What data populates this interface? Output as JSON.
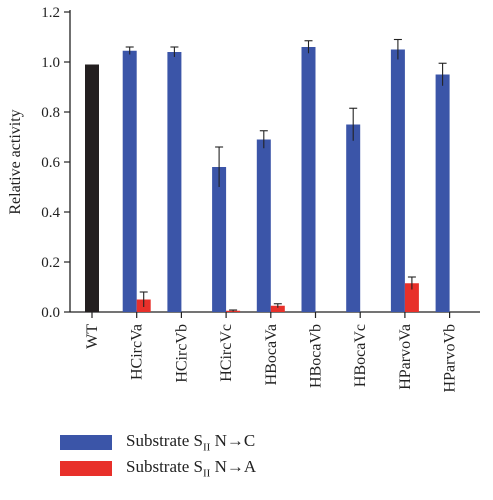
{
  "chart_data": {
    "type": "bar",
    "ylabel": "Relative activity",
    "ylim": [
      0,
      1.2
    ],
    "yticks": [
      "0.0",
      "0.2",
      "0.4",
      "0.6",
      "0.8",
      "1.0",
      "1.2"
    ],
    "categories": [
      "WT",
      "HCircVa",
      "HCircVb",
      "HCircVc",
      "HBocaVa",
      "HBocaVb",
      "HBocaVc",
      "HParvoVa",
      "HParvoVb"
    ],
    "wt_value": 0.99,
    "wt_color": "#231f20",
    "series": [
      {
        "name_prefix": "Substrate S",
        "name_sub": "II",
        "name_suffix": " N→C",
        "color": "#3b55a8",
        "values": [
          null,
          1.045,
          1.04,
          0.58,
          0.69,
          1.06,
          0.75,
          1.05,
          0.95
        ],
        "errors": [
          null,
          0.015,
          0.02,
          0.08,
          0.035,
          0.025,
          0.065,
          0.04,
          0.045
        ]
      },
      {
        "name_prefix": "Substrate S",
        "name_sub": "II",
        "name_suffix": " N→A",
        "color": "#e8302a",
        "values": [
          null,
          0.05,
          null,
          0.005,
          0.025,
          null,
          null,
          0.115,
          null
        ],
        "errors": [
          null,
          0.03,
          null,
          0.003,
          0.008,
          null,
          null,
          0.025,
          null
        ]
      }
    ],
    "legend_position": "bottom"
  }
}
